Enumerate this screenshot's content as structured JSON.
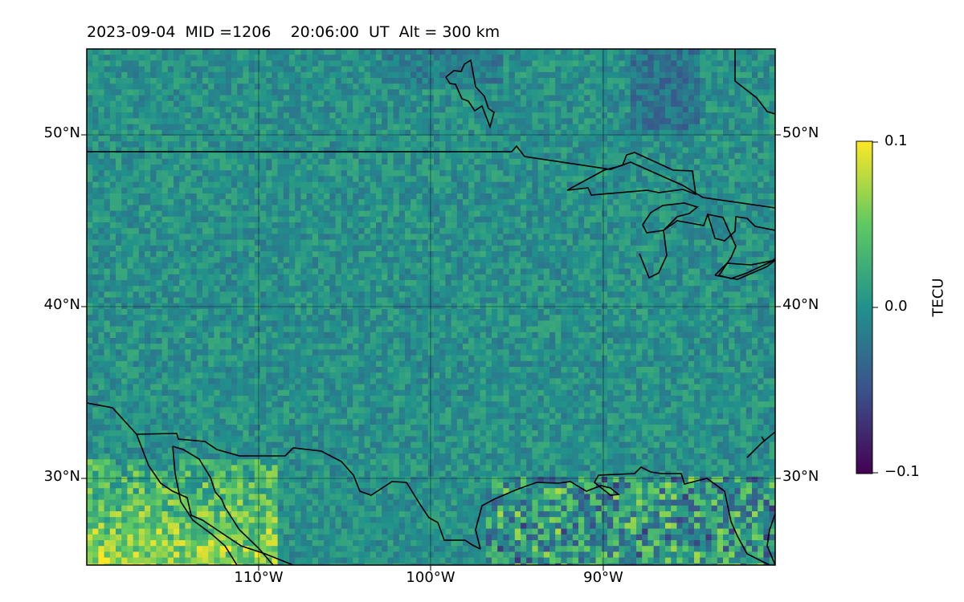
{
  "title": "2023-09-04  MID =1206    20:06:00  UT  Alt = 300 km",
  "map": {
    "lat_range": [
      25,
      55
    ],
    "lon_range": [
      -120,
      -80
    ],
    "lat_ticks": [
      "50°N",
      "40°N",
      "30°N"
    ],
    "lon_ticks": [
      "110°W",
      "100°W",
      "90°W"
    ],
    "grid": true
  },
  "colorbar": {
    "label": "TECU",
    "ticks": [
      "0.1",
      "0.0",
      "−0.1"
    ],
    "range": [
      -0.1,
      0.1
    ],
    "colormap": "viridis",
    "colors": [
      "#440154",
      "#3b528b",
      "#21918c",
      "#5ec962",
      "#fde725"
    ]
  }
}
